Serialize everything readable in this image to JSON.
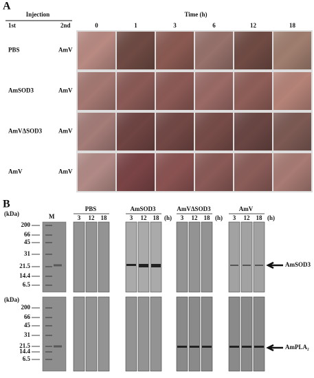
{
  "panel_a": {
    "label": "A",
    "injection": "Injection",
    "first_header": "1st",
    "second_header": "2nd",
    "time_label": "Time (h)",
    "times": [
      "0",
      "1",
      "3",
      "6",
      "12",
      "18"
    ],
    "rows": [
      {
        "first": "PBS",
        "second": "AmV"
      },
      {
        "first": "AmSOD3",
        "second": "AmV"
      },
      {
        "first": "AmVΔSOD3",
        "second": "AmV"
      },
      {
        "first": "AmV",
        "second": "AmV"
      }
    ]
  },
  "panel_b": {
    "label": "B",
    "unit": "(kDa)",
    "marker_lane": "M",
    "markers": [
      "200",
      "66",
      "45",
      "31",
      "21.5",
      "14.4",
      "6.5"
    ],
    "lanes": [
      "3",
      "12",
      "18"
    ],
    "groups": [
      {
        "name": "PBS"
      },
      {
        "name": "AmSOD3",
        "hour_unit": "(h)"
      },
      {
        "name": "AmVΔSOD3",
        "hour_unit": "(h)"
      },
      {
        "name": "AmV",
        "hour_unit": "(h)"
      }
    ],
    "arrow_top": "AmSOD3",
    "arrow_bottom": "AmPLA₂"
  }
}
